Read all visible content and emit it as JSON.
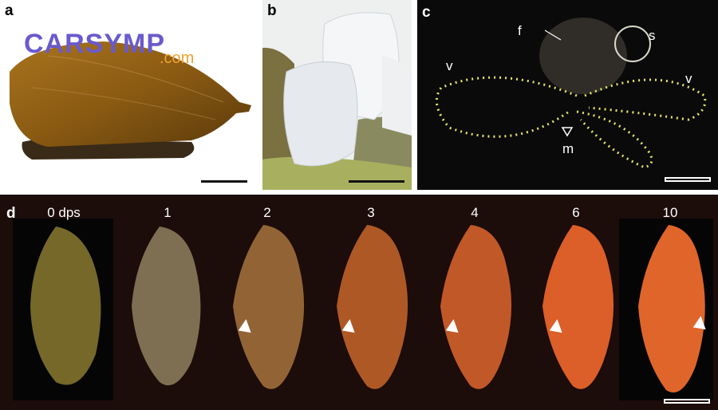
{
  "watermark": {
    "brand": "CARSYMP",
    "suffix": ".com"
  },
  "panels": {
    "a": {
      "label": "a"
    },
    "b": {
      "label": "b"
    },
    "c": {
      "label": "c",
      "annotations": {
        "f": "f",
        "s": "s",
        "v_left": "v",
        "v_right": "v",
        "m": "m"
      }
    },
    "d": {
      "label": "d",
      "stages": [
        "0 dps",
        "1",
        "2",
        "3",
        "4",
        "6",
        "10"
      ]
    }
  },
  "colors": {
    "shell_brown": "#8a5a12",
    "egg_white": "#e8ecef",
    "larva_glow": "#e3e36a",
    "stage_orange": "#e0652a"
  }
}
